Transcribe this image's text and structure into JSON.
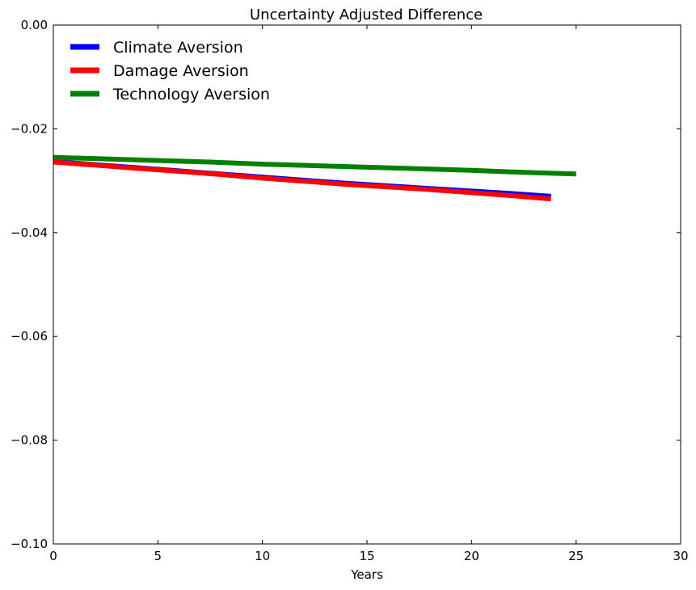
{
  "chart_data": {
    "type": "line",
    "title": "Uncertainty Adjusted Difference",
    "xlabel": "Years",
    "ylabel": "",
    "xlim": [
      0,
      30
    ],
    "ylim": [
      -0.1,
      0.0
    ],
    "x_ticks": [
      0,
      5,
      10,
      15,
      20,
      25,
      30
    ],
    "x_tick_labels": [
      "0",
      "5",
      "10",
      "15",
      "20",
      "25",
      "30"
    ],
    "y_ticks": [
      0.0,
      -0.02,
      -0.04,
      -0.06,
      -0.08,
      -0.1
    ],
    "y_tick_labels": [
      "0.00",
      "−0.02",
      "−0.04",
      "−0.06",
      "−0.08",
      "−0.10"
    ],
    "grid": false,
    "legend_position": "top-left",
    "series": [
      {
        "name": "Climate Aversion",
        "color": "#0000ff",
        "x": [
          0,
          2,
          4,
          6,
          8,
          10,
          12,
          14,
          16,
          18,
          20,
          22,
          23.8
        ],
        "y": [
          -0.0263,
          -0.0269,
          -0.0275,
          -0.0281,
          -0.0287,
          -0.0293,
          -0.0299,
          -0.0305,
          -0.031,
          -0.0315,
          -0.032,
          -0.0325,
          -0.033
        ]
      },
      {
        "name": "Damage Aversion",
        "color": "#ff0000",
        "x": [
          0,
          2,
          4,
          6,
          8,
          10,
          12,
          14,
          16,
          18,
          20,
          22,
          23.8
        ],
        "y": [
          -0.0264,
          -0.027,
          -0.0276,
          -0.0282,
          -0.0288,
          -0.0295,
          -0.0301,
          -0.0307,
          -0.0312,
          -0.0317,
          -0.0323,
          -0.0329,
          -0.0335
        ]
      },
      {
        "name": "Technology Aversion",
        "color": "#008000",
        "x": [
          0,
          2.5,
          5,
          7.5,
          10,
          12.5,
          15,
          17.5,
          20,
          22.5,
          25
        ],
        "y": [
          -0.0255,
          -0.0258,
          -0.0261,
          -0.0264,
          -0.0268,
          -0.0271,
          -0.0274,
          -0.0277,
          -0.028,
          -0.0284,
          -0.0287
        ]
      }
    ]
  }
}
